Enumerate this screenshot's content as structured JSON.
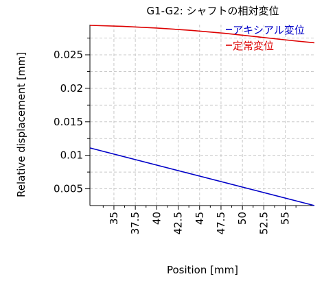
{
  "chart_data": {
    "type": "line",
    "title": "G1-G2: シャフトの相対変位",
    "xlabel": "Position [mm]",
    "ylabel": "Relative displacement [mm]",
    "xlim": [
      32.2,
      58.4
    ],
    "ylim": [
      0.0025,
      0.0295
    ],
    "x_ticks": [
      35,
      37.5,
      40,
      42.5,
      45,
      47.5,
      50,
      52.5,
      55
    ],
    "x_tick_labels": [
      "35",
      "37.5",
      "40",
      "42.5",
      "45",
      "47.5",
      "50",
      "52.5",
      "55"
    ],
    "y_ticks": [
      0.005,
      0.01,
      0.015,
      0.02,
      0.025
    ],
    "y_tick_labels": [
      "0.005",
      "0.01",
      "0.015",
      "0.02",
      "0.025"
    ],
    "grid": true,
    "legend_position": "top-right",
    "series": [
      {
        "name": "アキシアル変位",
        "color": "#0000c8",
        "x": [
          32.2,
          58.4
        ],
        "y": [
          0.0111,
          0.0025
        ]
      },
      {
        "name": "定常変位",
        "color": "#dd0000",
        "x": [
          32.2,
          36,
          40,
          44,
          48,
          52,
          56,
          58.4
        ],
        "y": [
          0.0294,
          0.02925,
          0.029,
          0.02865,
          0.0282,
          0.02765,
          0.0271,
          0.0268
        ]
      }
    ]
  }
}
